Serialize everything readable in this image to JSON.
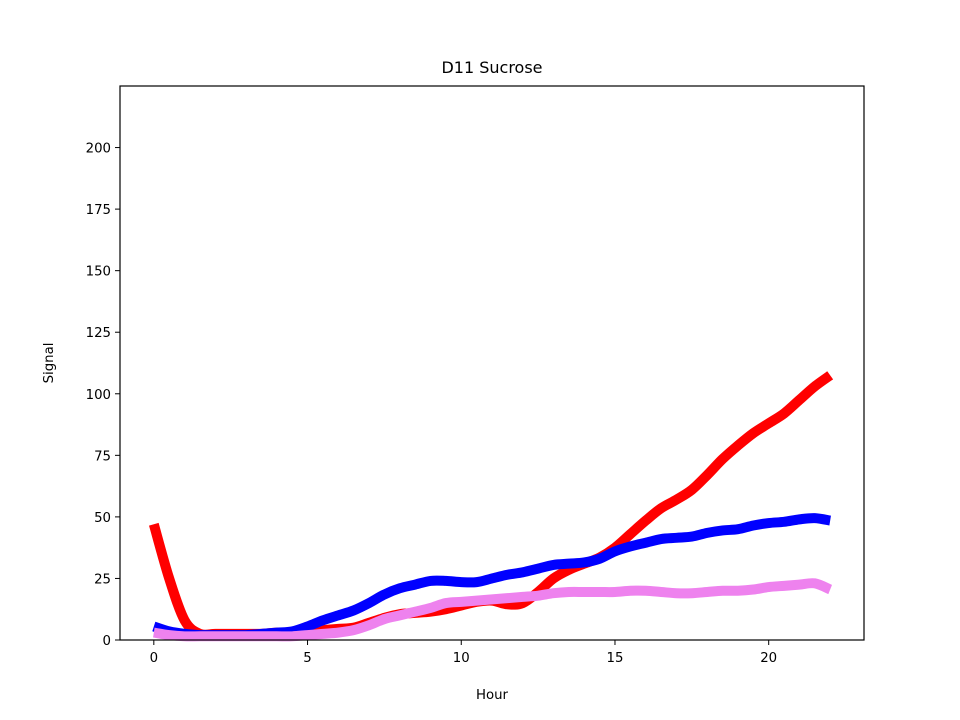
{
  "chart_data": {
    "type": "line",
    "title": "D11 Sucrose",
    "xlabel": "Hour",
    "ylabel": "Signal",
    "xlim": [
      -1.1,
      23.1
    ],
    "ylim": [
      0,
      225
    ],
    "xticks": [
      0,
      5,
      10,
      15,
      20
    ],
    "yticks": [
      0,
      25,
      50,
      75,
      100,
      125,
      150,
      175,
      200
    ],
    "grid": false,
    "legend": "none",
    "x": [
      0,
      0.5,
      1,
      1.5,
      2,
      2.5,
      3,
      3.5,
      4,
      4.5,
      5,
      5.5,
      6,
      6.5,
      7,
      7.5,
      8,
      8.5,
      9,
      9.5,
      10,
      10.5,
      11,
      11.5,
      12,
      12.5,
      13,
      13.5,
      14,
      14.5,
      15,
      15.5,
      16,
      16.5,
      17,
      17.5,
      18,
      18.5,
      19,
      19.5,
      20,
      20.5,
      21,
      21.5,
      22
    ],
    "series": [
      {
        "color": "#ff0000",
        "values": [
          47,
          25,
          8,
          2.5,
          2.5,
          2.5,
          2.5,
          2.5,
          3,
          3,
          3.5,
          4,
          4.5,
          5,
          7,
          9,
          10.5,
          11,
          11.5,
          12.5,
          14,
          15.5,
          16,
          14.5,
          15,
          19.5,
          25,
          28.5,
          31,
          33.5,
          37.5,
          43,
          48.5,
          53.5,
          57,
          61,
          67,
          73.5,
          79,
          84,
          88,
          92,
          97.5,
          103,
          107.5
        ]
      },
      {
        "color": "#0000ff",
        "values": [
          5.5,
          3.5,
          2.5,
          2,
          2,
          2,
          2,
          2.5,
          3,
          3.5,
          5.5,
          8,
          10,
          12,
          15,
          18.5,
          21,
          22.5,
          24,
          24,
          23.5,
          23.5,
          25,
          26.5,
          27.5,
          29,
          30.5,
          31,
          31.5,
          33,
          36,
          38,
          39.5,
          41,
          41.5,
          42,
          43.5,
          44.5,
          45,
          46.5,
          47.5,
          48,
          49,
          49.5,
          48.5
        ]
      },
      {
        "color": "#ee82ee",
        "values": [
          3,
          2,
          1.5,
          1.5,
          1.5,
          1.5,
          1.5,
          1.5,
          1.5,
          1.5,
          2,
          2.5,
          3,
          4,
          6,
          8.5,
          10,
          11.5,
          13,
          15,
          15.5,
          16,
          16.5,
          17,
          17.5,
          18,
          19,
          19.5,
          19.5,
          19.5,
          19.5,
          20,
          20,
          19.5,
          19,
          19,
          19.5,
          20,
          20,
          20.5,
          21.5,
          22,
          22.5,
          23,
          20.5
        ]
      }
    ]
  }
}
